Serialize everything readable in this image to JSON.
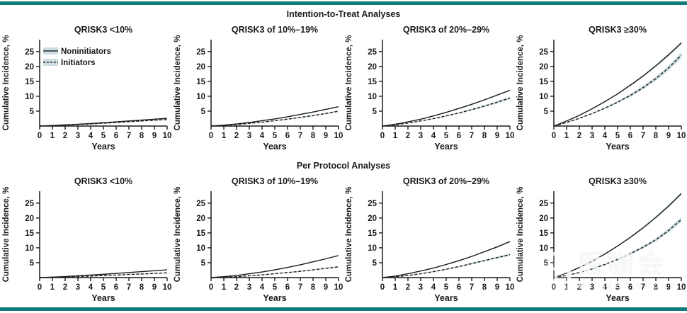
{
  "colors": {
    "rule_teal": "#0d7b78",
    "line_black": "#1a1a1a",
    "confidence_band": "#cddfe3",
    "background": "#ffffff"
  },
  "watermark": {
    "text_cn": "医咖会",
    "text_en": "MEDIECO GROUP",
    "logo_icon": "rounded-square-chat-logo"
  },
  "chart_data": {
    "type": "line",
    "x": [
      0,
      1,
      2,
      3,
      4,
      5,
      6,
      7,
      8,
      9,
      10
    ],
    "xlabel": "Years",
    "ylabel": "Cumulative Incidence, %",
    "yticks": [
      5,
      10,
      15,
      20,
      25
    ],
    "ylim": [
      0,
      29
    ],
    "xlim": [
      0,
      10
    ],
    "grid": false,
    "legend_position": "upper-left-first-panel",
    "legend": [
      {
        "label": "Noninitiators",
        "line_style": "solid"
      },
      {
        "label": "Initiators",
        "line_style": "dashed"
      }
    ],
    "rows": [
      {
        "title": "Intention-to-Treat Analyses",
        "panels": [
          {
            "title": "QRISK3 <10%",
            "show_legend": true,
            "series": [
              {
                "name": "Noninitiators",
                "line_style": "solid",
                "values": [
                  0,
                  0.2,
                  0.4,
                  0.6,
                  0.85,
                  1.1,
                  1.4,
                  1.7,
                  2.0,
                  2.3,
                  2.6
                ]
              },
              {
                "name": "Initiators",
                "line_style": "dashed",
                "values": [
                  0,
                  0.15,
                  0.3,
                  0.5,
                  0.7,
                  0.95,
                  1.2,
                  1.45,
                  1.7,
                  1.95,
                  2.2
                ]
              }
            ]
          },
          {
            "title": "QRISK3 of 10%–19%",
            "show_legend": false,
            "series": [
              {
                "name": "Noninitiators",
                "line_style": "solid",
                "values": [
                  0,
                  0.3,
                  0.7,
                  1.2,
                  1.8,
                  2.4,
                  3.1,
                  3.9,
                  4.7,
                  5.6,
                  6.5
                ]
              },
              {
                "name": "Initiators",
                "line_style": "dashed",
                "values": [
                  0,
                  0.2,
                  0.5,
                  0.9,
                  1.3,
                  1.8,
                  2.3,
                  2.9,
                  3.5,
                  4.2,
                  5.0
                ]
              }
            ]
          },
          {
            "title": "QRISK3 of 20%–29%",
            "show_legend": false,
            "series": [
              {
                "name": "Noninitiators",
                "line_style": "solid",
                "values": [
                  0,
                  0.6,
                  1.4,
                  2.3,
                  3.4,
                  4.6,
                  5.9,
                  7.3,
                  8.8,
                  10.4,
                  12.0
                ]
              },
              {
                "name": "Initiators",
                "line_style": "dashed",
                "values": [
                  0,
                  0.4,
                  1.0,
                  1.7,
                  2.5,
                  3.4,
                  4.4,
                  5.5,
                  6.7,
                  8.0,
                  9.4
                ]
              }
            ]
          },
          {
            "title": "QRISK3 ≥30%",
            "show_legend": false,
            "series": [
              {
                "name": "Noninitiators",
                "line_style": "solid",
                "values": [
                  0,
                  1.7,
                  3.6,
                  5.8,
                  8.2,
                  10.8,
                  13.7,
                  16.8,
                  20.2,
                  23.9,
                  27.9
                ]
              },
              {
                "name": "Initiators",
                "line_style": "dashed",
                "values": [
                  0,
                  1.2,
                  2.6,
                  4.2,
                  6.0,
                  8.0,
                  10.3,
                  12.9,
                  15.9,
                  19.5,
                  23.8
                ]
              }
            ]
          }
        ]
      },
      {
        "title": "Per Protocol Analyses",
        "panels": [
          {
            "title": "QRISK3 <10%",
            "show_legend": false,
            "series": [
              {
                "name": "Noninitiators",
                "line_style": "solid",
                "values": [
                  0,
                  0.15,
                  0.35,
                  0.6,
                  0.85,
                  1.1,
                  1.4,
                  1.7,
                  2.0,
                  2.3,
                  2.6
                ]
              },
              {
                "name": "Initiators",
                "line_style": "dashed",
                "values": [
                  0,
                  0.1,
                  0.2,
                  0.35,
                  0.5,
                  0.7,
                  0.85,
                  1.05,
                  1.2,
                  1.4,
                  1.6
                ]
              }
            ]
          },
          {
            "title": "QRISK3 of 10%–19%",
            "show_legend": false,
            "series": [
              {
                "name": "Noninitiators",
                "line_style": "solid",
                "values": [
                  0,
                  0.3,
                  0.7,
                  1.3,
                  1.9,
                  2.6,
                  3.4,
                  4.3,
                  5.3,
                  6.3,
                  7.4
                ]
              },
              {
                "name": "Initiators",
                "line_style": "dashed",
                "values": [
                  0,
                  0.1,
                  0.3,
                  0.6,
                  0.9,
                  1.3,
                  1.7,
                  2.1,
                  2.6,
                  3.1,
                  3.6
                ]
              }
            ]
          },
          {
            "title": "QRISK3 of 20%–29%",
            "show_legend": false,
            "series": [
              {
                "name": "Noninitiators",
                "line_style": "solid",
                "values": [
                  0,
                  0.5,
                  1.3,
                  2.2,
                  3.2,
                  4.4,
                  5.7,
                  7.1,
                  8.7,
                  10.3,
                  12.1
                ]
              },
              {
                "name": "Initiators",
                "line_style": "dashed",
                "values": [
                  0,
                  0.3,
                  0.7,
                  1.3,
                  2.0,
                  2.8,
                  3.7,
                  4.7,
                  5.7,
                  6.7,
                  7.7
                ]
              }
            ]
          },
          {
            "title": "QRISK3 ≥30%",
            "show_legend": false,
            "series": [
              {
                "name": "Noninitiators",
                "line_style": "solid",
                "values": [
                  0,
                  1.5,
                  3.4,
                  5.5,
                  7.9,
                  10.6,
                  13.5,
                  16.7,
                  20.2,
                  24.0,
                  28.2
                ]
              },
              {
                "name": "Initiators",
                "line_style": "dashed",
                "values": [
                  0,
                  0.7,
                  1.7,
                  2.9,
                  4.4,
                  6.1,
                  8.0,
                  10.2,
                  12.7,
                  15.8,
                  19.5
                ]
              }
            ]
          }
        ]
      }
    ]
  }
}
